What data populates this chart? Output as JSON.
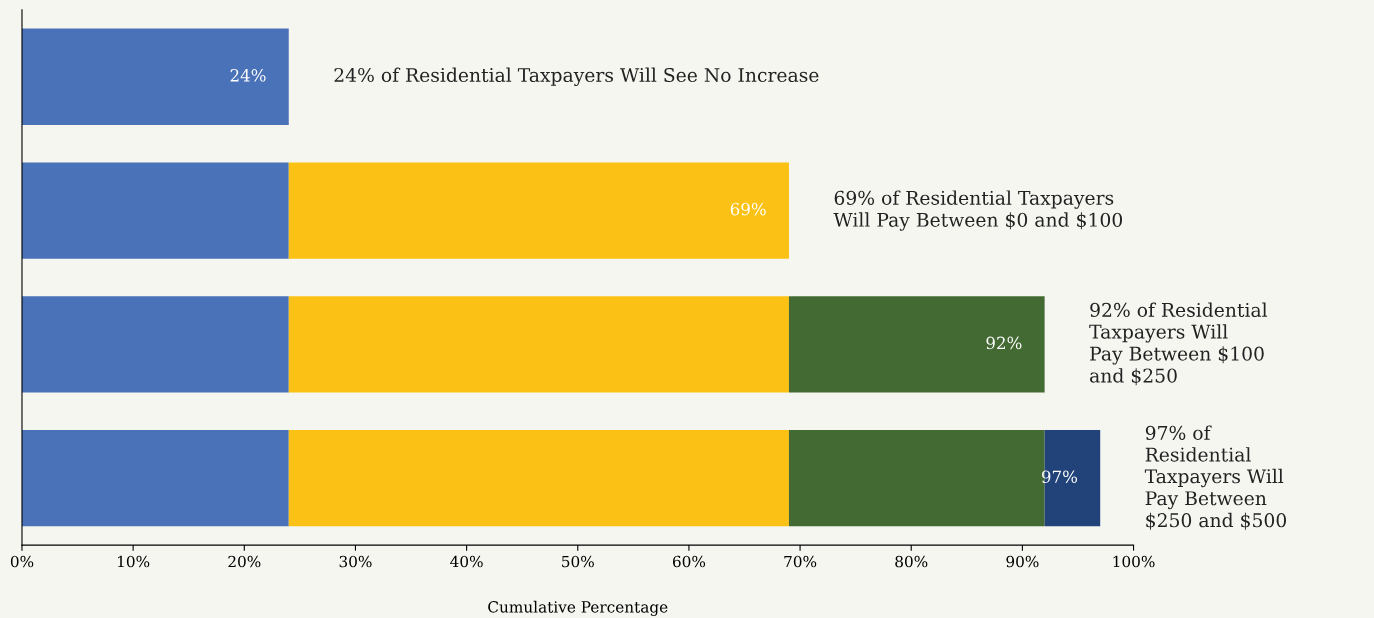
{
  "chart_data": {
    "type": "bar",
    "orientation": "horizontal",
    "stacked": true,
    "categories": [
      null,
      null,
      null,
      null
    ],
    "series": [
      {
        "color": "#4a72b8",
        "values": [
          24,
          24,
          24,
          24
        ]
      },
      {
        "color": "#fbc114",
        "values": [
          null,
          45,
          45,
          45
        ]
      },
      {
        "color": "#446a33",
        "values": [
          null,
          null,
          23,
          23
        ]
      },
      {
        "color": "#22437a",
        "values": [
          null,
          null,
          null,
          5
        ]
      }
    ],
    "totals": [
      "24%",
      "69%",
      "92%",
      "97%"
    ],
    "annotations": [
      "24% of Residential Taxpayers Will See No Increase",
      "69% of Residential Taxpayers\nWill Pay Between $0 and $100",
      "92% of Residential\nTaxpayers Will\nPay Between $100\nand $250",
      "97% of\nResidential\nTaxpayers Will\nPay Between\n$250 and $500"
    ],
    "xlabel": "Cumulative Percentage",
    "xlim": [
      0,
      100
    ],
    "xticks": [
      {
        "value": 0,
        "label": "0%"
      },
      {
        "value": 10,
        "label": "10%"
      },
      {
        "value": 20,
        "label": "20%"
      },
      {
        "value": 30,
        "label": "30%"
      },
      {
        "value": 40,
        "label": "40%"
      },
      {
        "value": 50,
        "label": "50%"
      },
      {
        "value": 60,
        "label": "60%"
      },
      {
        "value": 70,
        "label": "70%"
      },
      {
        "value": 80,
        "label": "80%"
      },
      {
        "value": 90,
        "label": "90%"
      },
      {
        "value": 100,
        "label": "100%"
      }
    ],
    "tick_labels": "x",
    "grid": false,
    "legend": false
  }
}
